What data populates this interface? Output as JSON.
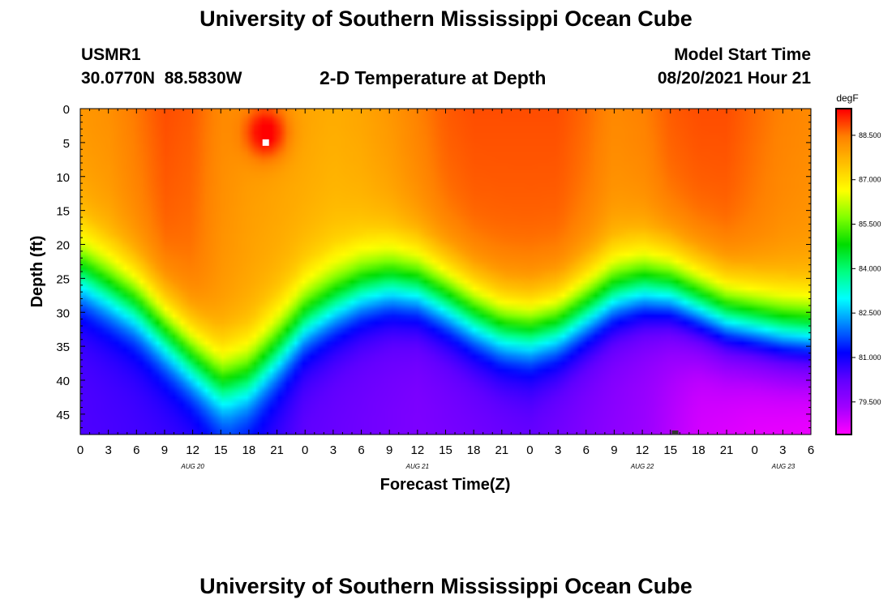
{
  "page": {
    "title_top": "University of Southern Mississippi Ocean Cube",
    "title_bottom": "University of Southern Mississippi Ocean Cube",
    "station_id": "USMR1",
    "station_coords": "30.0770N  88.5830W",
    "plot_title": "2-D Temperature at Depth",
    "model_start_label": "Model Start Time",
    "model_start_value": "08/20/2021 Hour 21"
  },
  "markers": {
    "max_marker": {
      "hour": 19.8,
      "depth": 5,
      "color": "#ffffff"
    },
    "min_marker": {
      "hour": 63.5,
      "depth": 48,
      "color": "#333333"
    }
  },
  "chart_data": {
    "type": "heatmap",
    "title": "2-D Temperature at Depth",
    "xlabel": "Forecast Time(Z)",
    "ylabel": "Depth (ft)",
    "xlim": [
      0,
      78
    ],
    "ylim": [
      0,
      48
    ],
    "y_inverted": true,
    "x_tick_labels": [
      "0",
      "3",
      "6",
      "9",
      "12",
      "15",
      "18",
      "21",
      "0",
      "3",
      "6",
      "9",
      "12",
      "15",
      "18",
      "21",
      "0",
      "3",
      "6",
      "9",
      "12",
      "15",
      "18",
      "21",
      "0",
      "3",
      "6"
    ],
    "date_labels": [
      "AUG 20",
      "AUG 21",
      "AUG 22",
      "AUG 23"
    ],
    "y_ticks": [
      0,
      5,
      10,
      15,
      20,
      25,
      30,
      35,
      40,
      45
    ],
    "colorbar": {
      "unit": "degF",
      "min": 78.4,
      "max": 89.4,
      "ticks": [
        "79.500",
        "81.000",
        "82.500",
        "84.000",
        "85.500",
        "87.000",
        "88.500"
      ],
      "colors": [
        "#ff00ff",
        "#a000ff",
        "#6000ff",
        "#0000ff",
        "#0080ff",
        "#00ffff",
        "#00ff80",
        "#00dd00",
        "#80ff00",
        "#ffff00",
        "#ffc000",
        "#ff8000",
        "#ff0000"
      ]
    },
    "thermocline_depth_ft": [
      [
        0,
        24.0
      ],
      [
        3,
        26.5
      ],
      [
        6,
        29.0
      ],
      [
        9,
        33.0
      ],
      [
        12,
        37.0
      ],
      [
        15,
        40.5
      ],
      [
        18,
        39.5
      ],
      [
        21,
        35.5
      ],
      [
        24,
        31.0
      ],
      [
        27,
        28.5
      ],
      [
        30,
        26.5
      ],
      [
        33,
        25.5
      ],
      [
        36,
        26.0
      ],
      [
        39,
        28.0
      ],
      [
        42,
        30.5
      ],
      [
        45,
        32.5
      ],
      [
        48,
        33.0
      ],
      [
        51,
        32.0
      ],
      [
        54,
        29.5
      ],
      [
        57,
        27.0
      ],
      [
        60,
        26.0
      ],
      [
        63,
        26.5
      ],
      [
        66,
        28.5
      ],
      [
        69,
        30.5
      ],
      [
        72,
        31.5
      ],
      [
        75,
        32.5
      ],
      [
        78,
        33.0
      ]
    ],
    "surface_temperature_degF": [
      [
        0,
        87.9
      ],
      [
        3,
        88.0
      ],
      [
        6,
        88.3
      ],
      [
        9,
        88.6
      ],
      [
        12,
        88.5
      ],
      [
        15,
        88.1
      ],
      [
        18,
        87.9
      ],
      [
        21,
        87.8
      ],
      [
        24,
        87.7
      ],
      [
        27,
        87.6
      ],
      [
        30,
        87.7
      ],
      [
        33,
        87.9
      ],
      [
        36,
        88.2
      ],
      [
        39,
        88.5
      ],
      [
        42,
        88.6
      ],
      [
        45,
        88.6
      ],
      [
        48,
        88.6
      ],
      [
        51,
        88.6
      ],
      [
        54,
        88.4
      ],
      [
        57,
        88.1
      ],
      [
        60,
        88.2
      ],
      [
        63,
        88.5
      ],
      [
        66,
        88.6
      ],
      [
        69,
        88.6
      ],
      [
        72,
        88.4
      ],
      [
        75,
        88.2
      ],
      [
        78,
        88.1
      ]
    ],
    "bottom_temperature_degF": [
      [
        0,
        80.4
      ],
      [
        12,
        80.6
      ],
      [
        16,
        81.1
      ],
      [
        24,
        80.2
      ],
      [
        36,
        79.8
      ],
      [
        48,
        80.1
      ],
      [
        60,
        79.4
      ],
      [
        66,
        78.8
      ],
      [
        72,
        78.6
      ],
      [
        78,
        78.5
      ]
    ],
    "warm_core": {
      "hour": 19.8,
      "depth": 3.5,
      "peak_degF": 89.4
    }
  }
}
